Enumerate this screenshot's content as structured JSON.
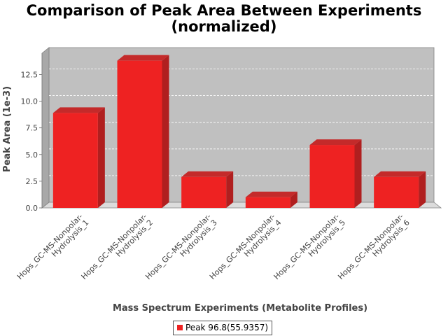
{
  "chart_data": {
    "type": "bar",
    "title": "Comparison of Peak Area Between Experiments",
    "subtitle": "(normalized)",
    "xlabel": "Mass Spectrum Experiments (Metabolite Profiles)",
    "ylabel": "Peak Area (1e-3)",
    "categories": [
      [
        "Hops_GC-MS-Nonpolar-",
        "Hydrolysis_1"
      ],
      [
        "Hops_GC-MS-Nonpolar-",
        "Hydrolysis_2"
      ],
      [
        "Hops_GC-MS-Nonpolar-",
        "Hydrolysis_3"
      ],
      [
        "Hops_GC-MS-Nonpolar-",
        "Hydrolysis_4"
      ],
      [
        "Hops_GC-MS-Nonpolar-",
        "Hydrolysis_5"
      ],
      [
        "Hops_GC-MS-Nonpolar-",
        "Hydrolysis_6"
      ]
    ],
    "series": [
      {
        "name": "Peak 96.8(55.9357)",
        "values": [
          8.9,
          13.8,
          2.9,
          1.0,
          5.9,
          2.9
        ]
      }
    ],
    "yticks": [
      "0.0",
      "2.5",
      "5.0",
      "7.5",
      "10.0",
      "12.5"
    ],
    "ylim": [
      0,
      14.5
    ],
    "grid": true,
    "legend_position": "bottom",
    "bar_color": "#ee2222",
    "plot_background": "#c0c0c0"
  }
}
